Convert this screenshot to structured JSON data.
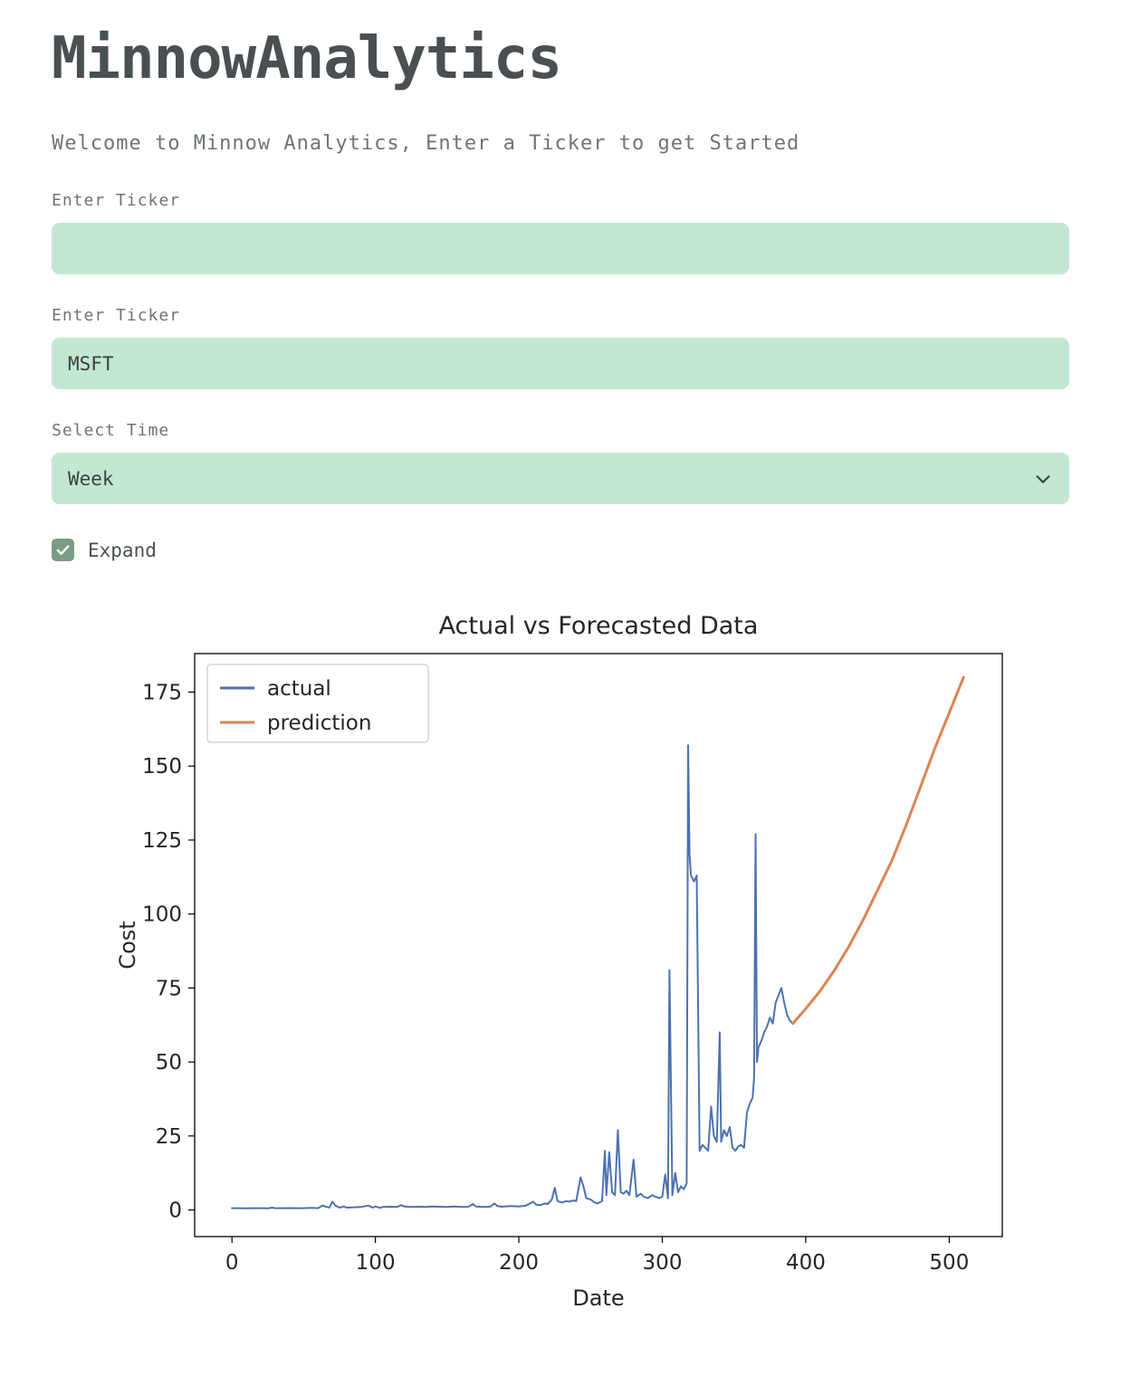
{
  "app": {
    "title": "MinnowAnalytics",
    "subtitle": "Welcome to Minnow Analytics, Enter a Ticker to get Started"
  },
  "form": {
    "ticker_empty": {
      "label": "Enter Ticker",
      "value": "",
      "placeholder": ""
    },
    "ticker_filled": {
      "label": "Enter Ticker",
      "value": "MSFT"
    },
    "time_select": {
      "label": "Select Time",
      "value": "Week"
    },
    "expand_checkbox": {
      "label": "Expand",
      "checked": true
    }
  },
  "colors": {
    "input_background": "#c3e7d1",
    "checkbox_green": "#7a9b85",
    "title_gray": "#4a4f52",
    "label_gray": "#6e7478",
    "actual_blue": "#4c72b0",
    "prediction_orange": "#dd8452"
  },
  "chart_data": {
    "type": "line",
    "title": "Actual vs Forecasted Data",
    "xlabel": "Date",
    "ylabel": "Cost",
    "xlim": [
      -26,
      537
    ],
    "ylim": [
      -9,
      188
    ],
    "x_ticks": [
      0,
      100,
      200,
      300,
      400,
      500
    ],
    "y_ticks": [
      0,
      25,
      50,
      75,
      100,
      125,
      150,
      175
    ],
    "grid": false,
    "legend_position": "upper left",
    "series": [
      {
        "name": "actual",
        "color": "#4c72b0",
        "width": 2,
        "points": [
          [
            0,
            0.6
          ],
          [
            5,
            0.6
          ],
          [
            10,
            0.55
          ],
          [
            15,
            0.6
          ],
          [
            20,
            0.6
          ],
          [
            25,
            0.55
          ],
          [
            28,
            0.8
          ],
          [
            30,
            0.6
          ],
          [
            35,
            0.6
          ],
          [
            40,
            0.65
          ],
          [
            45,
            0.6
          ],
          [
            50,
            0.6
          ],
          [
            55,
            0.7
          ],
          [
            60,
            0.6
          ],
          [
            63,
            1.5
          ],
          [
            65,
            1.2
          ],
          [
            68,
            0.8
          ],
          [
            70,
            2.8
          ],
          [
            72,
            1.5
          ],
          [
            75,
            0.8
          ],
          [
            78,
            1.2
          ],
          [
            80,
            0.8
          ],
          [
            85,
            0.9
          ],
          [
            90,
            1.0
          ],
          [
            95,
            1.5
          ],
          [
            98,
            0.8
          ],
          [
            100,
            1.2
          ],
          [
            103,
            0.7
          ],
          [
            105,
            1.0
          ],
          [
            110,
            1.1
          ],
          [
            115,
            1.0
          ],
          [
            118,
            1.6
          ],
          [
            120,
            1.2
          ],
          [
            125,
            1.0
          ],
          [
            130,
            1.1
          ],
          [
            135,
            1.0
          ],
          [
            140,
            1.2
          ],
          [
            145,
            1.1
          ],
          [
            150,
            1.0
          ],
          [
            155,
            1.2
          ],
          [
            160,
            1.0
          ],
          [
            165,
            1.1
          ],
          [
            168,
            2.0
          ],
          [
            170,
            1.2
          ],
          [
            175,
            1.0
          ],
          [
            180,
            1.1
          ],
          [
            183,
            2.2
          ],
          [
            185,
            1.3
          ],
          [
            188,
            1.1
          ],
          [
            190,
            1.2
          ],
          [
            195,
            1.3
          ],
          [
            200,
            1.2
          ],
          [
            205,
            1.5
          ],
          [
            210,
            2.8
          ],
          [
            212,
            1.8
          ],
          [
            215,
            1.6
          ],
          [
            218,
            2.2
          ],
          [
            220,
            2.0
          ],
          [
            223,
            3.5
          ],
          [
            225,
            7.5
          ],
          [
            227,
            3.0
          ],
          [
            230,
            2.5
          ],
          [
            233,
            3.0
          ],
          [
            235,
            2.8
          ],
          [
            238,
            3.2
          ],
          [
            240,
            3.0
          ],
          [
            243,
            11.0
          ],
          [
            245,
            8.0
          ],
          [
            247,
            4.0
          ],
          [
            250,
            3.5
          ],
          [
            253,
            2.5
          ],
          [
            255,
            2.2
          ],
          [
            258,
            3.0
          ],
          [
            260,
            20.0
          ],
          [
            261,
            5.0
          ],
          [
            263,
            19.5
          ],
          [
            265,
            6.0
          ],
          [
            267,
            5.0
          ],
          [
            269,
            27.0
          ],
          [
            271,
            6.0
          ],
          [
            273,
            5.5
          ],
          [
            275,
            6.5
          ],
          [
            277,
            5.0
          ],
          [
            280,
            17.0
          ],
          [
            282,
            4.5
          ],
          [
            285,
            5.5
          ],
          [
            287,
            4.5
          ],
          [
            290,
            4.0
          ],
          [
            293,
            5.0
          ],
          [
            295,
            4.5
          ],
          [
            298,
            4.0
          ],
          [
            300,
            4.5
          ],
          [
            302,
            12.0
          ],
          [
            304,
            4.0
          ],
          [
            305,
            81.0
          ],
          [
            307,
            5.0
          ],
          [
            309,
            12.5
          ],
          [
            311,
            6.0
          ],
          [
            313,
            8.0
          ],
          [
            315,
            7.0
          ],
          [
            317,
            9.0
          ],
          [
            318,
            157.0
          ],
          [
            319,
            120.0
          ],
          [
            320,
            113.0
          ],
          [
            322,
            111.0
          ],
          [
            324,
            113.0
          ],
          [
            326,
            20.0
          ],
          [
            328,
            22.0
          ],
          [
            330,
            21.0
          ],
          [
            332,
            20.0
          ],
          [
            334,
            35.0
          ],
          [
            336,
            25.0
          ],
          [
            338,
            23.0
          ],
          [
            340,
            60.0
          ],
          [
            341,
            23.0
          ],
          [
            343,
            27.0
          ],
          [
            345,
            25.0
          ],
          [
            347,
            28.0
          ],
          [
            349,
            21.0
          ],
          [
            351,
            20.0
          ],
          [
            353,
            21.5
          ],
          [
            355,
            22.0
          ],
          [
            357,
            21.0
          ],
          [
            359,
            33.0
          ],
          [
            361,
            36.0
          ],
          [
            363,
            38.0
          ],
          [
            364,
            45.0
          ],
          [
            365,
            127.0
          ],
          [
            366,
            50.0
          ],
          [
            367,
            55.0
          ],
          [
            369,
            57.0
          ],
          [
            371,
            60.0
          ],
          [
            373,
            62.0
          ],
          [
            375,
            65.0
          ],
          [
            377,
            63.0
          ],
          [
            379,
            70.0
          ],
          [
            381,
            72.5
          ],
          [
            383,
            75.0
          ],
          [
            385,
            70.0
          ],
          [
            387,
            66.0
          ],
          [
            389,
            64.0
          ],
          [
            391,
            63.0
          ]
        ]
      },
      {
        "name": "prediction",
        "color": "#dd8452",
        "width": 3,
        "points": [
          [
            391,
            63
          ],
          [
            400,
            68
          ],
          [
            410,
            74
          ],
          [
            420,
            81
          ],
          [
            430,
            89
          ],
          [
            440,
            98
          ],
          [
            450,
            108
          ],
          [
            460,
            118
          ],
          [
            470,
            130
          ],
          [
            480,
            143
          ],
          [
            490,
            156
          ],
          [
            500,
            168
          ],
          [
            510,
            180
          ]
        ]
      }
    ]
  }
}
